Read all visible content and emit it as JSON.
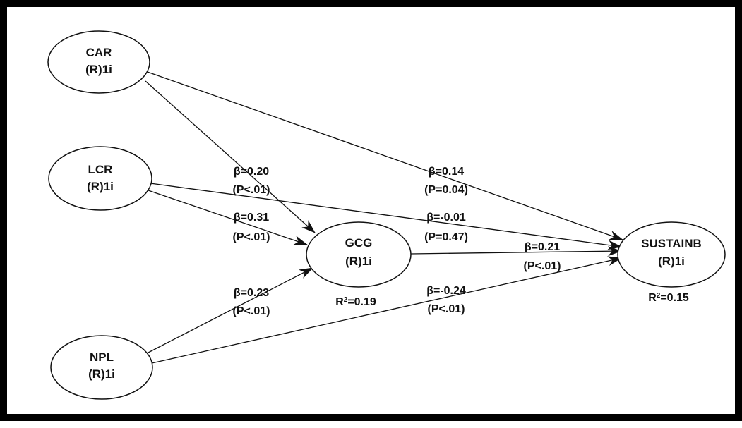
{
  "diagram": {
    "nodes": [
      {
        "id": "car",
        "line1": "CAR",
        "line2": "(R)1i"
      },
      {
        "id": "lcr",
        "line1": "LCR",
        "line2": "(R)1i"
      },
      {
        "id": "npl",
        "line1": "NPL",
        "line2": "(R)1i"
      },
      {
        "id": "gcg",
        "line1": "GCG",
        "line2": "(R)1i",
        "r2_prefix": "R",
        "r2_sup": "2",
        "r2_value": "=0.19"
      },
      {
        "id": "sustainb",
        "line1": "SUSTAINB",
        "line2": "(R)1i",
        "r2_prefix": "R",
        "r2_sup": "2",
        "r2_value": "=0.15"
      }
    ],
    "paths": [
      {
        "from": "car",
        "to": "gcg",
        "beta": "β=0.20",
        "p": "(P<.01)"
      },
      {
        "from": "lcr",
        "to": "gcg",
        "beta": "β=0.31",
        "p": "(P<.01)"
      },
      {
        "from": "npl",
        "to": "gcg",
        "beta": "β=0.23",
        "p": "(P<.01)"
      },
      {
        "from": "car",
        "to": "sustainb",
        "beta": "β=0.14",
        "p": "(P=0.04)"
      },
      {
        "from": "lcr",
        "to": "sustainb",
        "beta": "β=-0.01",
        "p": "(P=0.47)"
      },
      {
        "from": "gcg",
        "to": "sustainb",
        "beta": "β=0.21",
        "p": "(P<.01)"
      },
      {
        "from": "npl",
        "to": "sustainb",
        "beta": "β=-0.24",
        "p": "(P<.01)"
      }
    ]
  }
}
